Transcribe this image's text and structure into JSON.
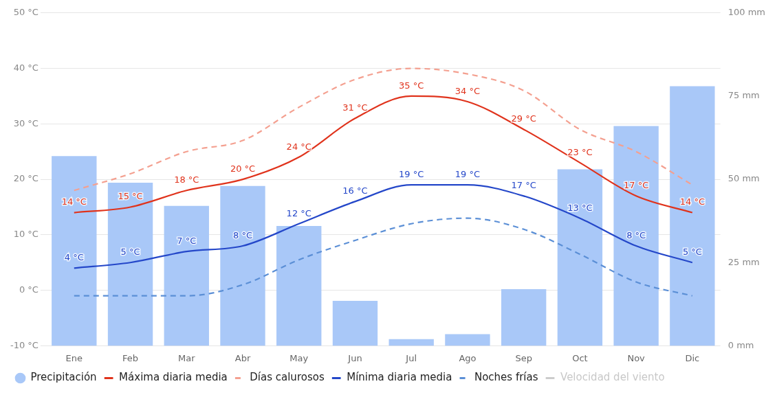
{
  "chart_data": {
    "type": "line",
    "categories": [
      "Ene",
      "Feb",
      "Mar",
      "Abr",
      "May",
      "Jun",
      "Jul",
      "Ago",
      "Sep",
      "Oct",
      "Nov",
      "Dic"
    ],
    "series": [
      {
        "name": "Precipitación",
        "type": "bar",
        "axis": "y2",
        "color": "#a9c8f8",
        "values": [
          57,
          49,
          42,
          48,
          36,
          13.5,
          2,
          3.5,
          17,
          53,
          66,
          78
        ]
      },
      {
        "name": "Máxima diaria media",
        "color": "#e0331c",
        "values": [
          14,
          15,
          18,
          20,
          24,
          31,
          35,
          34,
          29,
          23,
          17,
          14
        ],
        "value_labels": [
          "14 °C",
          "15 °C",
          "18 °C",
          "20 °C",
          "24 °C",
          "31 °C",
          "35 °C",
          "34 °C",
          "29 °C",
          "23 °C",
          "17 °C",
          "14 °C"
        ]
      },
      {
        "name": "Días calurosos",
        "line_style": "dashed",
        "color": "#f4a090",
        "values": [
          18,
          21,
          25,
          27,
          33,
          38,
          40,
          39,
          36,
          29,
          25,
          19
        ]
      },
      {
        "name": "Mínima diaria media",
        "color": "#2447c9",
        "values": [
          4,
          5,
          7,
          8,
          12,
          16,
          19,
          19,
          17,
          13,
          8,
          5
        ],
        "value_labels": [
          "4 °C",
          "5 °C",
          "7 °C",
          "8 °C",
          "12 °C",
          "16 °C",
          "19 °C",
          "19 °C",
          "17 °C",
          "13 °C",
          "8 °C",
          "5 °C"
        ]
      },
      {
        "name": "Noches frías",
        "line_style": "dashed",
        "color": "#5b8fd6",
        "values": [
          -1,
          -1,
          -1,
          1,
          5.5,
          9,
          12,
          13,
          11,
          6.5,
          1.5,
          -1
        ]
      },
      {
        "name": "Velocidad del viento",
        "color": "#cccccc",
        "values": [
          null,
          null,
          null,
          null,
          null,
          null,
          null,
          null,
          null,
          null,
          null,
          null
        ]
      }
    ],
    "ylim": [
      -10,
      50
    ],
    "yticks": [
      {
        "value": -10,
        "label": "-10 °C"
      },
      {
        "value": 0,
        "label": "0 °C"
      },
      {
        "value": 10,
        "label": "10 °C"
      },
      {
        "value": 20,
        "label": "20 °C"
      },
      {
        "value": 30,
        "label": "30 °C"
      },
      {
        "value": 40,
        "label": "40 °C"
      },
      {
        "value": 50,
        "label": "50 °C"
      }
    ],
    "y2lim": [
      0,
      100
    ],
    "y2ticks": [
      {
        "value": 0,
        "label": "0 mm"
      },
      {
        "value": 25,
        "label": "25 mm"
      },
      {
        "value": 50,
        "label": "50 mm"
      },
      {
        "value": 75,
        "label": "75 mm"
      },
      {
        "value": 100,
        "label": "100 mm"
      }
    ],
    "grid": "y",
    "legend": "bottom",
    "marker": "none"
  }
}
